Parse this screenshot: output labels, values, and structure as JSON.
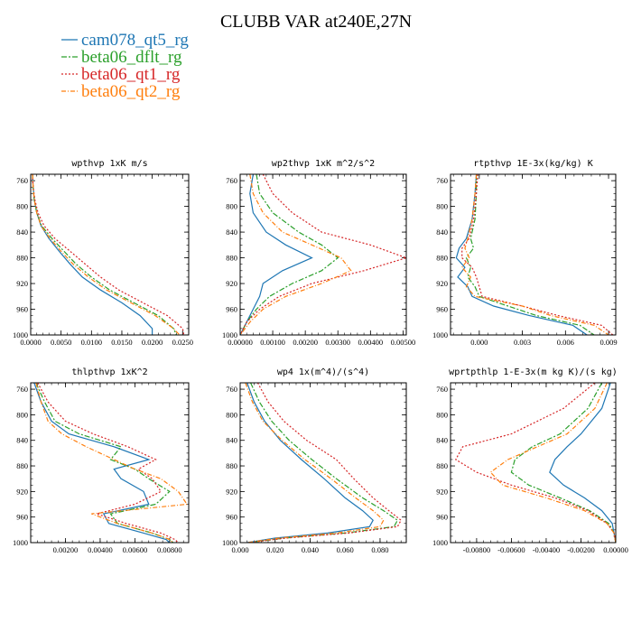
{
  "figure": {
    "title": "CLUBB VAR at240E,27N"
  },
  "colors": {
    "cam078_qt5_rg": "#1f77b4",
    "beta06_dflt_rg": "#2ca02c",
    "beta06_qt1_rg": "#d62728",
    "beta06_qt2_rg": "#ff7f0e"
  },
  "legend": [
    {
      "name": "cam078_qt5_rg",
      "dash": "none"
    },
    {
      "name": "beta06_dflt_rg",
      "dash": "6,2,2,2"
    },
    {
      "name": "beta06_qt1_rg",
      "dash": "2,2"
    },
    {
      "name": "beta06_qt2_rg",
      "dash": "5,2,1,2"
    }
  ],
  "chart_data": [
    {
      "type": "line",
      "title": "wpthvp  1xK m/s",
      "xlim": [
        0,
        0.026
      ],
      "ylim": [
        1000,
        750
      ],
      "xticks": [
        0.0,
        0.005,
        0.01,
        0.015,
        0.02,
        0.025
      ],
      "xticklabels": [
        "0.0000",
        "0.0050",
        "0.0100",
        "0.0150",
        "0.0200",
        "0.0250"
      ],
      "yticks": [
        760,
        800,
        840,
        880,
        920,
        960,
        1000
      ],
      "yticklabels": [
        "760",
        "800",
        "840",
        "880",
        "920",
        "960",
        "1000"
      ],
      "levels": [
        750,
        770,
        790,
        810,
        830,
        850,
        870,
        890,
        910,
        930,
        950,
        970,
        990,
        1000
      ],
      "series": [
        {
          "name": "cam078_qt5_rg",
          "values": [
            0.0003,
            0.0004,
            0.0006,
            0.001,
            0.0017,
            0.003,
            0.0047,
            0.0065,
            0.0085,
            0.0115,
            0.015,
            0.018,
            0.02,
            0.02
          ]
        },
        {
          "name": "beta06_dflt_rg",
          "values": [
            0.0003,
            0.0004,
            0.0006,
            0.001,
            0.0018,
            0.0035,
            0.0055,
            0.0075,
            0.01,
            0.013,
            0.017,
            0.021,
            0.0235,
            0.024
          ]
        },
        {
          "name": "beta06_qt1_rg",
          "values": [
            0.0003,
            0.0004,
            0.0007,
            0.0012,
            0.0022,
            0.004,
            0.0065,
            0.009,
            0.0115,
            0.0145,
            0.0185,
            0.0225,
            0.025,
            0.0252
          ]
        },
        {
          "name": "beta06_qt2_rg",
          "values": [
            0.0003,
            0.0004,
            0.0006,
            0.001,
            0.0017,
            0.0032,
            0.005,
            0.007,
            0.0095,
            0.0125,
            0.0165,
            0.0205,
            0.0235,
            0.0245
          ]
        }
      ]
    },
    {
      "type": "line",
      "title": "wp2thvp  1xK m^2/s^2",
      "xlim": [
        0,
        0.0051
      ],
      "ylim": [
        1000,
        750
      ],
      "xticks": [
        0.0,
        0.001,
        0.002,
        0.003,
        0.004,
        0.005
      ],
      "xticklabels": [
        "0.00000",
        "0.00100",
        "0.00200",
        "0.00300",
        "0.00400",
        "0.00500"
      ],
      "yticks": [
        760,
        800,
        840,
        880,
        920,
        960,
        1000
      ],
      "yticklabels": [
        "760",
        "800",
        "840",
        "880",
        "920",
        "960",
        "1000"
      ],
      "levels": [
        750,
        780,
        810,
        840,
        860,
        880,
        900,
        920,
        940,
        960,
        980,
        1000
      ],
      "series": [
        {
          "name": "cam078_qt5_rg",
          "values": [
            0.0004,
            0.0003,
            0.0004,
            0.0008,
            0.0014,
            0.0022,
            0.0013,
            0.0007,
            0.0006,
            0.0004,
            0.0002,
            0.0
          ]
        },
        {
          "name": "beta06_dflt_rg",
          "values": [
            0.0005,
            0.0006,
            0.001,
            0.0018,
            0.0025,
            0.003,
            0.0025,
            0.0016,
            0.0009,
            0.0005,
            0.0002,
            0.0
          ]
        },
        {
          "name": "beta06_qt1_rg",
          "values": [
            0.0007,
            0.001,
            0.0016,
            0.0025,
            0.004,
            0.0051,
            0.0038,
            0.0022,
            0.0012,
            0.0006,
            0.0002,
            0.0
          ]
        },
        {
          "name": "beta06_qt2_rg",
          "values": [
            0.0003,
            0.0004,
            0.0007,
            0.0013,
            0.0022,
            0.0031,
            0.0034,
            0.0025,
            0.0014,
            0.0007,
            0.0003,
            0.0
          ]
        }
      ]
    },
    {
      "type": "line",
      "title": "rtpthvp  1E-3x(kg/kg) K",
      "xlim": [
        -0.002,
        0.0095
      ],
      "ylim": [
        1000,
        750
      ],
      "xticks": [
        0.0,
        0.003,
        0.006,
        0.009
      ],
      "xticklabels": [
        "0.000",
        "0.003",
        "0.006",
        "0.009"
      ],
      "yticks": [
        760,
        800,
        840,
        880,
        920,
        960,
        1000
      ],
      "yticklabels": [
        "760",
        "800",
        "840",
        "880",
        "920",
        "960",
        "1000"
      ],
      "levels": [
        750,
        780,
        820,
        850,
        865,
        880,
        895,
        910,
        925,
        940,
        955,
        970,
        985,
        1000
      ],
      "series": [
        {
          "name": "cam078_qt5_rg",
          "values": [
            -0.0002,
            -0.0003,
            -0.0005,
            -0.0009,
            -0.0014,
            -0.0016,
            -0.001,
            -0.0015,
            -0.0008,
            -0.0005,
            0.001,
            0.0035,
            0.0065,
            0.0075
          ]
        },
        {
          "name": "beta06_dflt_rg",
          "values": [
            -0.0002,
            -0.0002,
            -0.0003,
            -0.0006,
            -0.0004,
            -0.0009,
            -0.0006,
            -0.0008,
            -0.0003,
            0.0,
            0.002,
            0.004,
            0.007,
            0.008
          ]
        },
        {
          "name": "beta06_qt1_rg",
          "values": [
            -0.0001,
            -0.0002,
            -0.0004,
            -0.0007,
            -0.0012,
            -0.0012,
            -0.0005,
            -0.0002,
            0.0,
            0.0002,
            0.003,
            0.0055,
            0.0085,
            0.0093
          ]
        },
        {
          "name": "beta06_qt2_rg",
          "values": [
            -0.0002,
            -0.0003,
            -0.0005,
            -0.0008,
            -0.001,
            -0.0007,
            -0.0012,
            -0.0006,
            -0.0009,
            -0.0003,
            0.003,
            0.005,
            0.008,
            0.009
          ]
        }
      ]
    },
    {
      "type": "line",
      "title": "thlpthvp  1xK^2",
      "xlim": [
        0,
        0.0091
      ],
      "ylim": [
        1000,
        750
      ],
      "xticks": [
        0.002,
        0.004,
        0.006,
        0.008
      ],
      "xticklabels": [
        "0.00200",
        "0.00400",
        "0.00600",
        "0.00800"
      ],
      "yticks": [
        760,
        800,
        840,
        880,
        920,
        960,
        1000
      ],
      "yticklabels": [
        "760",
        "800",
        "840",
        "880",
        "920",
        "960",
        "1000"
      ],
      "levels": [
        750,
        780,
        810,
        830,
        850,
        870,
        885,
        900,
        920,
        940,
        955,
        970,
        985,
        995,
        1000
      ],
      "series": [
        {
          "name": "cam078_qt5_rg",
          "values": [
            0.0002,
            0.0006,
            0.0012,
            0.0022,
            0.0048,
            0.0068,
            0.0048,
            0.0052,
            0.0065,
            0.0068,
            0.0042,
            0.0045,
            0.0065,
            0.0078,
            0.008
          ]
        },
        {
          "name": "beta06_dflt_rg",
          "values": [
            0.0003,
            0.0008,
            0.0014,
            0.0028,
            0.0052,
            0.0046,
            0.006,
            0.0068,
            0.008,
            0.0072,
            0.0046,
            0.005,
            0.007,
            0.008,
            0.0082
          ]
        },
        {
          "name": "beta06_qt1_rg",
          "values": [
            0.0004,
            0.001,
            0.002,
            0.0036,
            0.0056,
            0.0072,
            0.0062,
            0.007,
            0.0075,
            0.006,
            0.0038,
            0.0055,
            0.0075,
            0.0083,
            0.0085
          ]
        },
        {
          "name": "beta06_qt2_rg",
          "values": [
            0.0003,
            0.0006,
            0.001,
            0.0018,
            0.0032,
            0.0048,
            0.006,
            0.0075,
            0.0085,
            0.009,
            0.0035,
            0.005,
            0.007,
            0.008,
            0.0082
          ]
        }
      ]
    },
    {
      "type": "line",
      "title": "wp4  1x(m^4)/(s^4)",
      "xlim": [
        0,
        0.095
      ],
      "ylim": [
        1000,
        750
      ],
      "xticks": [
        0.0,
        0.02,
        0.04,
        0.06,
        0.08
      ],
      "xticklabels": [
        "0.000",
        "0.020",
        "0.040",
        "0.060",
        "0.080"
      ],
      "yticks": [
        760,
        800,
        840,
        880,
        920,
        960,
        1000
      ],
      "yticklabels": [
        "760",
        "800",
        "840",
        "880",
        "920",
        "960",
        "1000"
      ],
      "levels": [
        750,
        780,
        810,
        840,
        870,
        900,
        930,
        950,
        965,
        975,
        985,
        993,
        1000
      ],
      "series": [
        {
          "name": "cam078_qt5_rg",
          "values": [
            0.004,
            0.008,
            0.014,
            0.023,
            0.035,
            0.048,
            0.06,
            0.07,
            0.076,
            0.074,
            0.05,
            0.02,
            0.004
          ]
        },
        {
          "name": "beta06_dflt_rg",
          "values": [
            0.006,
            0.011,
            0.018,
            0.028,
            0.041,
            0.055,
            0.07,
            0.082,
            0.09,
            0.088,
            0.06,
            0.025,
            0.005
          ]
        },
        {
          "name": "beta06_qt1_rg",
          "values": [
            0.01,
            0.016,
            0.025,
            0.038,
            0.055,
            0.065,
            0.076,
            0.085,
            0.092,
            0.09,
            0.062,
            0.026,
            0.005
          ]
        },
        {
          "name": "beta06_qt2_rg",
          "values": [
            0.003,
            0.007,
            0.013,
            0.024,
            0.037,
            0.052,
            0.066,
            0.076,
            0.082,
            0.08,
            0.055,
            0.022,
            0.004
          ]
        }
      ]
    },
    {
      "type": "line",
      "title": "wprtpthlp  1-E-3x(m kg K)/(s kg)",
      "xlim": [
        -0.0095,
        0.0
      ],
      "ylim": [
        1000,
        750
      ],
      "xticks": [
        -0.008,
        -0.006,
        -0.004,
        -0.002,
        0.0
      ],
      "xticklabels": [
        "-0.00800",
        "-0.00600",
        "-0.00400",
        "-0.00200",
        "0.00000"
      ],
      "yticks": [
        760,
        800,
        840,
        880,
        920,
        960,
        1000
      ],
      "yticklabels": [
        "760",
        "800",
        "840",
        "880",
        "920",
        "960",
        "1000"
      ],
      "levels": [
        750,
        790,
        830,
        850,
        870,
        890,
        910,
        930,
        950,
        970,
        985,
        1000
      ],
      "series": [
        {
          "name": "cam078_qt5_rg",
          "values": [
            -0.0003,
            -0.0008,
            -0.002,
            -0.0028,
            -0.0035,
            -0.0038,
            -0.003,
            -0.0018,
            -0.0008,
            -0.0002,
            -0.0001,
            0.0
          ]
        },
        {
          "name": "beta06_dflt_rg",
          "values": [
            -0.0008,
            -0.0016,
            -0.0032,
            -0.0048,
            -0.0058,
            -0.006,
            -0.005,
            -0.0032,
            -0.0015,
            -0.0004,
            -0.0001,
            0.0
          ]
        },
        {
          "name": "beta06_qt1_rg",
          "values": [
            -0.0012,
            -0.003,
            -0.006,
            -0.0088,
            -0.0092,
            -0.008,
            -0.006,
            -0.0035,
            -0.0016,
            -0.0005,
            -0.0001,
            0.0
          ]
        },
        {
          "name": "beta06_qt2_rg",
          "values": [
            -0.0005,
            -0.0012,
            -0.0028,
            -0.0045,
            -0.0062,
            -0.0072,
            -0.0065,
            -0.004,
            -0.0018,
            -0.0005,
            -0.0001,
            0.0
          ]
        }
      ]
    }
  ]
}
